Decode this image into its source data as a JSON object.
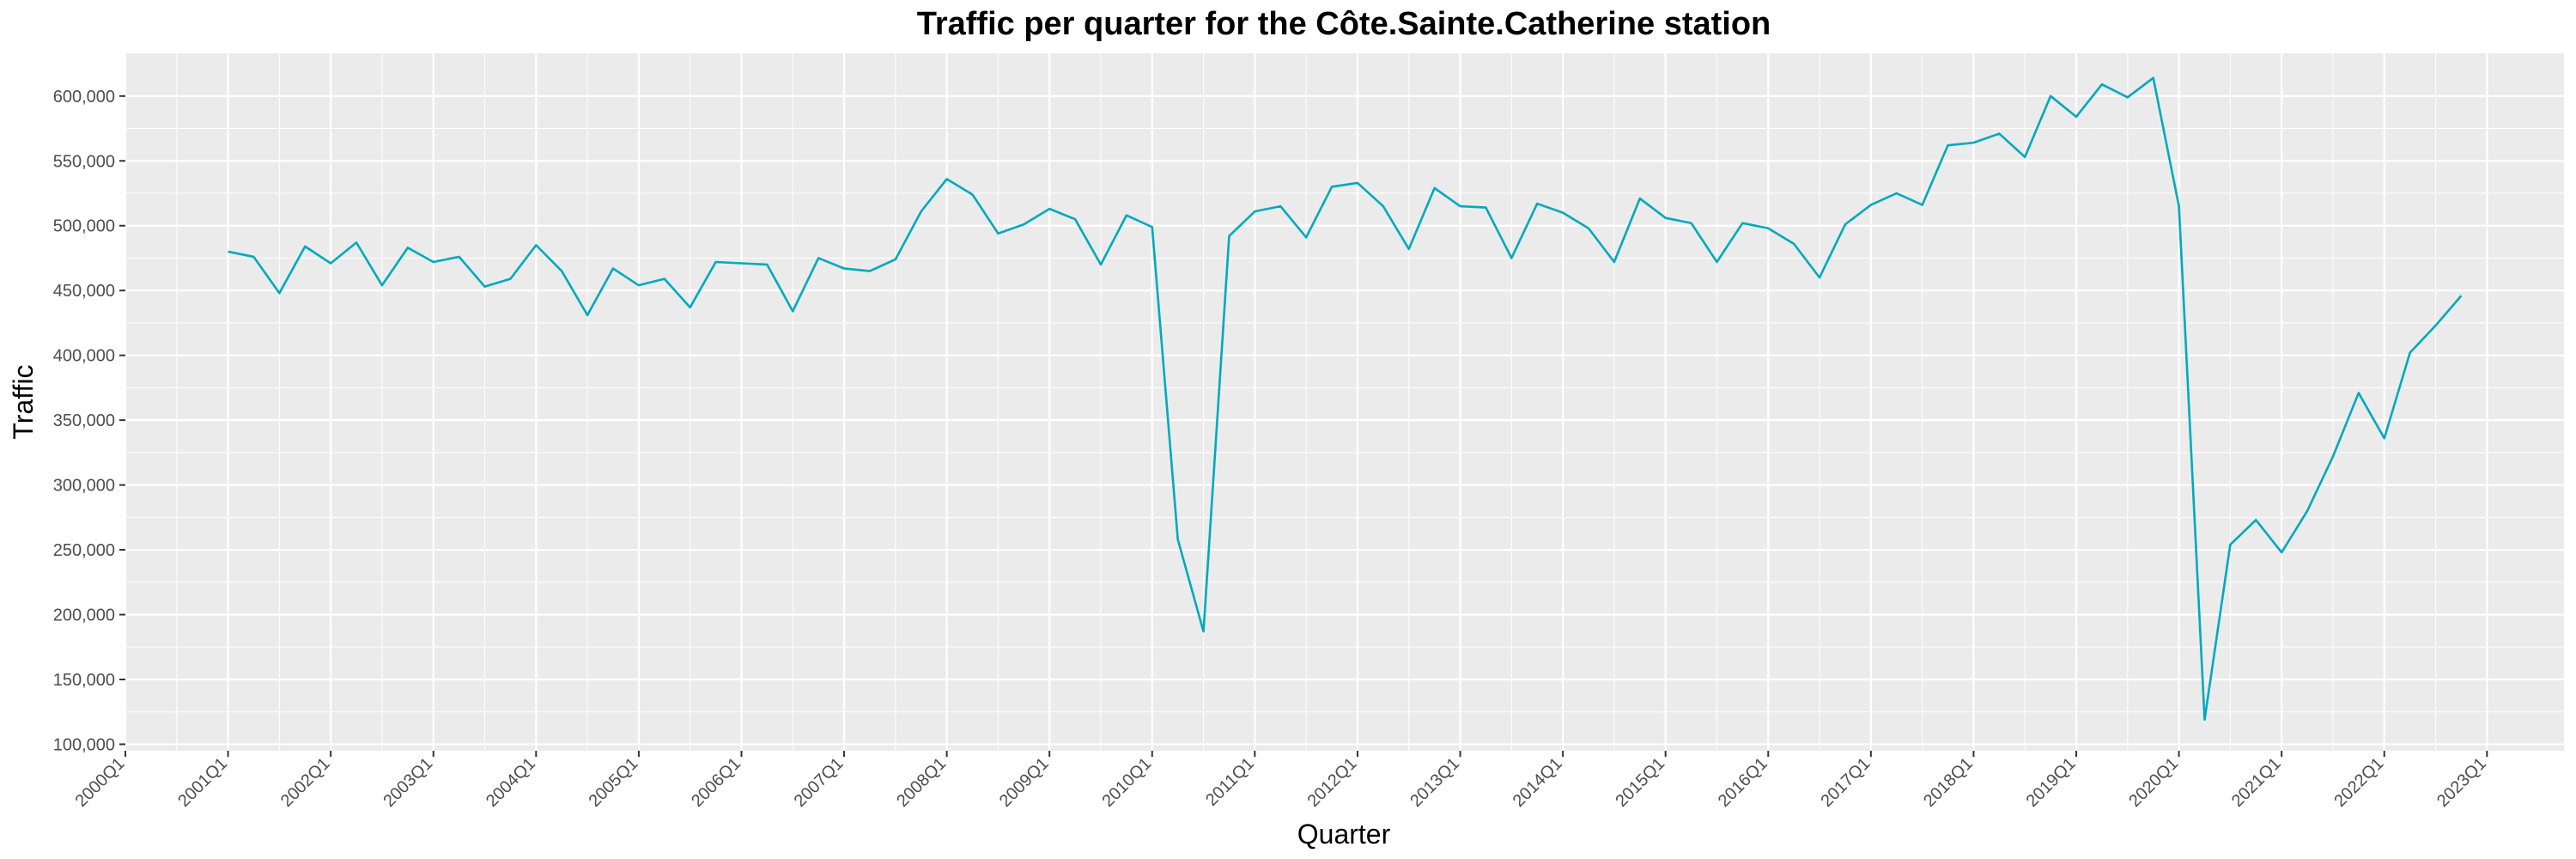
{
  "chart_data": {
    "type": "line",
    "title": "Traffic per quarter for the Côte.Sainte.Catherine station",
    "xlabel": "Quarter",
    "ylabel": "Traffic",
    "x_ticks": [
      "2000Q1",
      "2001Q1",
      "2002Q1",
      "2003Q1",
      "2004Q1",
      "2005Q1",
      "2006Q1",
      "2007Q1",
      "2008Q1",
      "2009Q1",
      "2010Q1",
      "2011Q1",
      "2012Q1",
      "2013Q1",
      "2014Q1",
      "2015Q1",
      "2016Q1",
      "2017Q1",
      "2018Q1",
      "2019Q1",
      "2020Q1",
      "2021Q1",
      "2022Q1",
      "2023Q1"
    ],
    "y_ticks": [
      "100,000",
      "150,000",
      "200,000",
      "250,000",
      "300,000",
      "350,000",
      "400,000",
      "450,000",
      "500,000",
      "550,000",
      "600,000"
    ],
    "ylim": [
      95000,
      633000
    ],
    "grid": true,
    "colors": {
      "line": "#00a9bd",
      "panel": "#ebebeb",
      "grid": "#ffffff"
    },
    "series": [
      {
        "x": [
          "2001Q1",
          "2001Q2",
          "2001Q3",
          "2001Q4",
          "2002Q1",
          "2002Q2",
          "2002Q3",
          "2002Q4",
          "2003Q1",
          "2003Q2",
          "2003Q3",
          "2003Q4",
          "2004Q1",
          "2004Q2",
          "2004Q3",
          "2004Q4",
          "2005Q1",
          "2005Q2",
          "2005Q3",
          "2005Q4",
          "2006Q1",
          "2006Q2",
          "2006Q3",
          "2006Q4",
          "2007Q1",
          "2007Q2",
          "2007Q3",
          "2007Q4",
          "2008Q1",
          "2008Q2",
          "2008Q3",
          "2008Q4",
          "2009Q1",
          "2009Q2",
          "2009Q3",
          "2009Q4",
          "2010Q1",
          "2010Q2",
          "2010Q3",
          "2010Q4",
          "2011Q1",
          "2011Q2",
          "2011Q3",
          "2011Q4",
          "2012Q1",
          "2012Q2",
          "2012Q3",
          "2012Q4",
          "2013Q1",
          "2013Q2",
          "2013Q3",
          "2013Q4",
          "2014Q1",
          "2014Q2",
          "2014Q3",
          "2014Q4",
          "2015Q1",
          "2015Q2",
          "2015Q3",
          "2015Q4",
          "2016Q1",
          "2016Q2",
          "2016Q3",
          "2016Q4",
          "2017Q1",
          "2017Q2",
          "2017Q3",
          "2017Q4",
          "2018Q1",
          "2018Q2",
          "2018Q3",
          "2018Q4",
          "2019Q1",
          "2019Q2",
          "2019Q3",
          "2019Q4",
          "2020Q1",
          "2020Q2",
          "2020Q3",
          "2020Q4",
          "2021Q1",
          "2021Q2",
          "2021Q3",
          "2021Q4",
          "2022Q1",
          "2022Q2",
          "2022Q3",
          "2022Q4"
        ],
        "values": [
          480000,
          476000,
          448000,
          484000,
          471000,
          487000,
          454000,
          483000,
          472000,
          476000,
          453000,
          459000,
          485000,
          465000,
          431000,
          467000,
          454000,
          459000,
          437000,
          472000,
          471000,
          470000,
          434000,
          475000,
          467000,
          465000,
          474000,
          511000,
          536000,
          524000,
          494000,
          501000,
          513000,
          505000,
          470000,
          508000,
          499000,
          258000,
          187000,
          492000,
          511000,
          515000,
          491000,
          530000,
          533000,
          515000,
          482000,
          529000,
          515000,
          514000,
          475000,
          517000,
          510000,
          498000,
          472000,
          521000,
          506000,
          502000,
          472000,
          502000,
          498000,
          486000,
          460000,
          501000,
          516000,
          525000,
          516000,
          562000,
          564000,
          571000,
          553000,
          600000,
          584000,
          609000,
          599000,
          614000,
          515000,
          119000,
          254000,
          273000,
          248000,
          280000,
          322000,
          371000,
          336000,
          402000,
          423000,
          446000
        ]
      }
    ]
  }
}
